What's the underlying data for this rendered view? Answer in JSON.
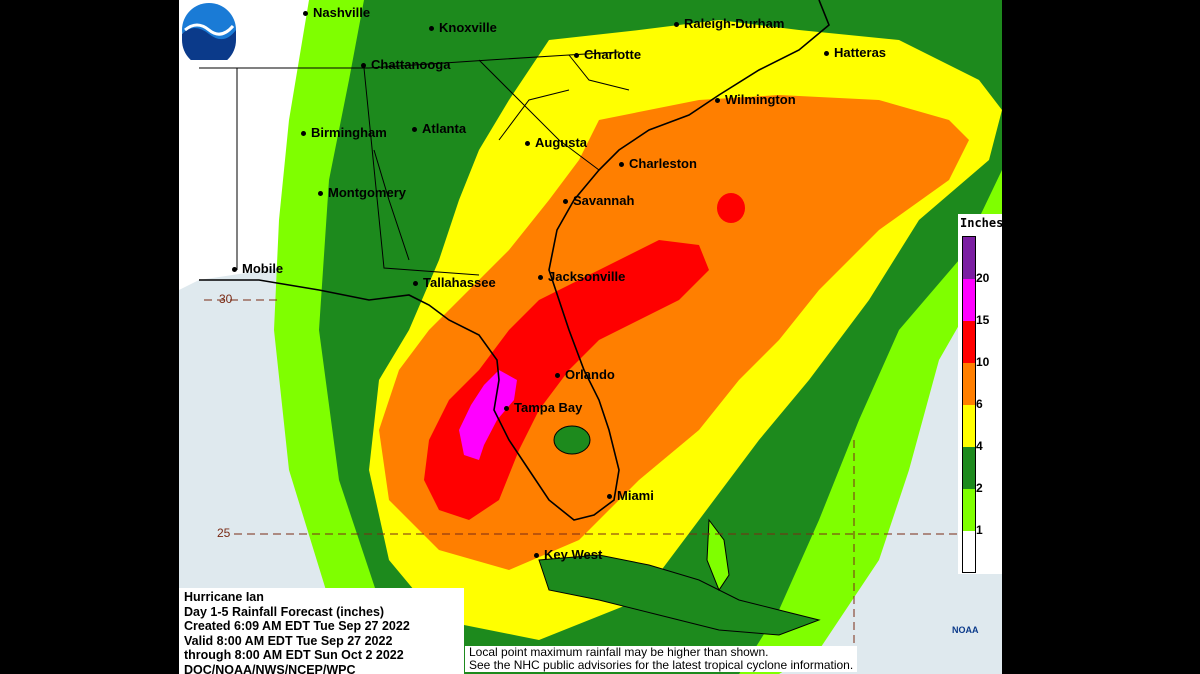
{
  "map": {
    "cities": [
      {
        "name": "Nashville"
      },
      {
        "name": "Knoxville"
      },
      {
        "name": "Raleigh-Durham"
      },
      {
        "name": "Hatteras"
      },
      {
        "name": "Chattanooga"
      },
      {
        "name": "Charlotte"
      },
      {
        "name": "Wilmington"
      },
      {
        "name": "Birmingham"
      },
      {
        "name": "Atlanta"
      },
      {
        "name": "Augusta"
      },
      {
        "name": "Charleston"
      },
      {
        "name": "Montgomery"
      },
      {
        "name": "Savannah"
      },
      {
        "name": "Mobile"
      },
      {
        "name": "Tallahassee"
      },
      {
        "name": "Jacksonville"
      },
      {
        "name": "Orlando"
      },
      {
        "name": "Tampa Bay"
      },
      {
        "name": "Miami"
      },
      {
        "name": "Key West"
      }
    ],
    "latitudes": [
      "30",
      "25"
    ]
  },
  "info": {
    "line1": "Hurricane Ian",
    "line2": "Day 1-5 Rainfall Forecast (inches)",
    "line3": "Created 6:09 AM EDT Tue Sep 27 2022",
    "line4": "Valid 8:00 AM EDT Tue Sep 27 2022",
    "line5": "through 8:00 AM EDT Sun Oct 2 2022",
    "line6": "DOC/NOAA/NWS/NCEP/WPC"
  },
  "disclaimer": {
    "line1": "Local point maximum rainfall may be higher than shown.",
    "line2": "See the NHC public advisories for the latest tropical cyclone information."
  },
  "legend": {
    "title": "Inches",
    "labels": [
      "20",
      "15",
      "10",
      "6",
      "4",
      "2",
      "1"
    ],
    "colors": {
      "above20": "#7b1fa2",
      "15to20": "#ff00ff",
      "10to15": "#ff0000",
      "6to10": "#ff7f00",
      "4to6": "#ffff00",
      "2to4": "#1d8a1d",
      "1to2": "#7fff00",
      "below1": "#ffffff"
    }
  },
  "logo": {
    "text": "NOAA"
  }
}
